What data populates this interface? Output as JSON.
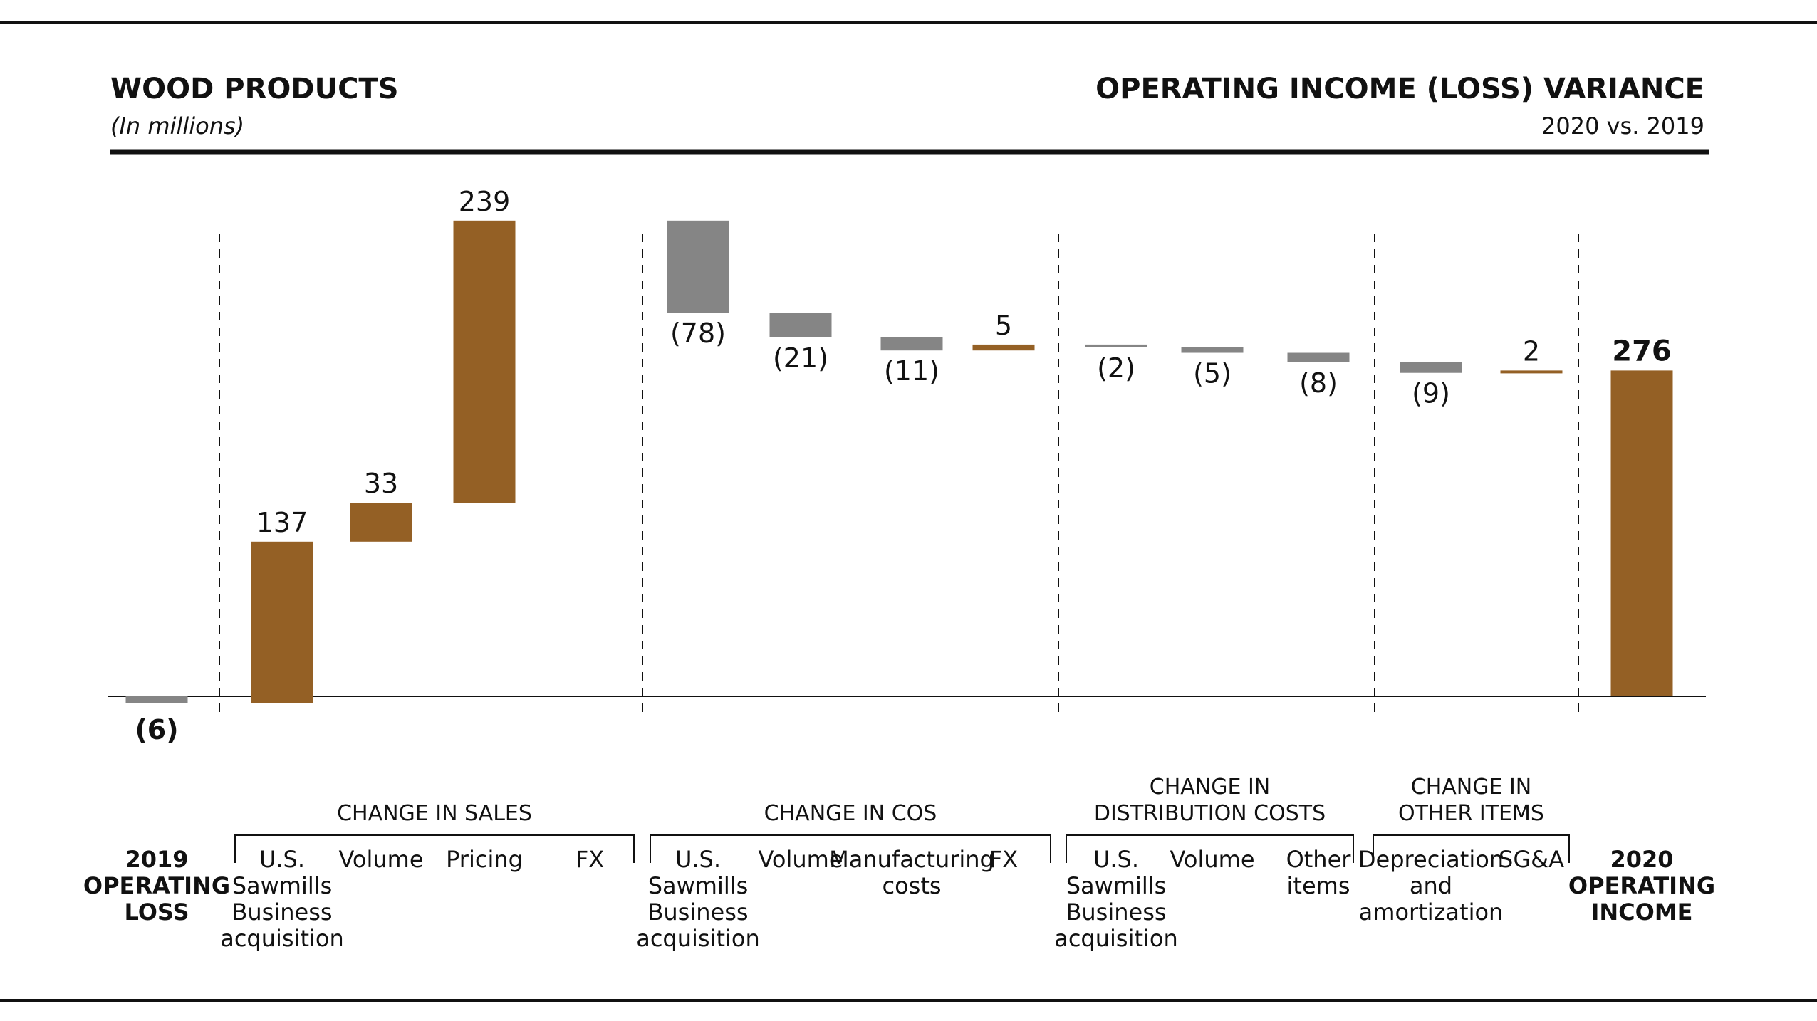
{
  "header": {
    "title": "WOOD PRODUCTS",
    "units": "(In millions)",
    "right_title": "OPERATING INCOME (LOSS) VARIANCE",
    "right_subtitle": "2020 vs. 2019"
  },
  "colors": {
    "positive": "#946025",
    "negative": "#858585",
    "rule": "#111111",
    "text": "#111111"
  },
  "chart_data": {
    "type": "bar",
    "subtype": "waterfall",
    "title": "OPERATING INCOME (LOSS) VARIANCE",
    "subtitle": "2020 vs. 2019",
    "ylabel": "",
    "unit": "(In millions)",
    "ylim": [
      -15,
      255
    ],
    "start": {
      "label_lines": [
        "2019",
        "OPERATING",
        "LOSS"
      ],
      "value": -6,
      "display": "(6)",
      "bold": true
    },
    "end": {
      "label_lines": [
        "2020",
        "OPERATING",
        "INCOME"
      ],
      "value": 276,
      "display": "276",
      "bold": true
    },
    "groups": [
      {
        "label_lines": [
          "CHANGE IN SALES"
        ],
        "steps": [
          {
            "label_lines": [
              "U.S.",
              "Sawmills",
              "Business",
              "acquisition"
            ],
            "value": 137,
            "display": "137"
          },
          {
            "label_lines": [
              "Volume"
            ],
            "value": 33,
            "display": "33"
          },
          {
            "label_lines": [
              "Pricing"
            ],
            "value": 239,
            "display": "239"
          },
          {
            "label_lines": [
              "FX"
            ],
            "value": 0,
            "display": ""
          }
        ]
      },
      {
        "label_lines": [
          "CHANGE IN COS"
        ],
        "steps": [
          {
            "label_lines": [
              "U.S.",
              "Sawmills",
              "Business",
              "acquisition"
            ],
            "value": -78,
            "display": "(78)"
          },
          {
            "label_lines": [
              "Volume"
            ],
            "value": -21,
            "display": "(21)"
          },
          {
            "label_lines": [
              "Manufacturing",
              "costs"
            ],
            "value": -11,
            "display": "(11)"
          },
          {
            "label_lines": [
              "FX"
            ],
            "value": 5,
            "display": "5"
          }
        ]
      },
      {
        "label_lines": [
          "CHANGE IN",
          "DISTRIBUTION COSTS"
        ],
        "steps": [
          {
            "label_lines": [
              "U.S.",
              "Sawmills",
              "Business",
              "acquisition"
            ],
            "value": -2,
            "display": "(2)"
          },
          {
            "label_lines": [
              "Volume"
            ],
            "value": -5,
            "display": "(5)"
          },
          {
            "label_lines": [
              "Other",
              "items"
            ],
            "value": -8,
            "display": "(8)"
          }
        ]
      },
      {
        "label_lines": [
          "CHANGE IN",
          "OTHER ITEMS"
        ],
        "steps": [
          {
            "label_lines": [
              "Depreciation",
              "and",
              "amortization"
            ],
            "value": -9,
            "display": "(9)"
          },
          {
            "label_lines": [
              "SG&A"
            ],
            "value": 2,
            "display": "2"
          }
        ]
      }
    ]
  }
}
